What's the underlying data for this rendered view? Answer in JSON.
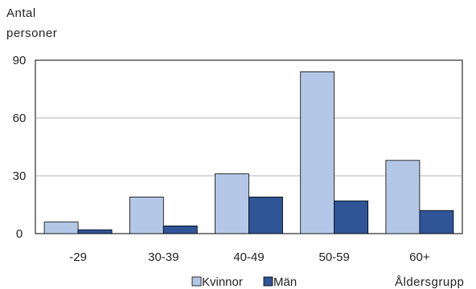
{
  "chart_data": {
    "type": "bar",
    "ylabel": "Antal personer",
    "xlabel": "Åldersgrupp",
    "categories": [
      "-29",
      "30-39",
      "40-49",
      "50-59",
      "60+"
    ],
    "series": [
      {
        "name": "Kvinnor",
        "color": "#b4c7e7",
        "values": [
          6,
          19,
          31,
          84,
          38
        ]
      },
      {
        "name": "Män",
        "color": "#2f5597",
        "values": [
          2,
          4,
          19,
          17,
          12
        ]
      }
    ],
    "ylim": [
      0,
      90
    ],
    "yticks": [
      0,
      30,
      60,
      90
    ],
    "grid": true,
    "legend": "bottom"
  }
}
